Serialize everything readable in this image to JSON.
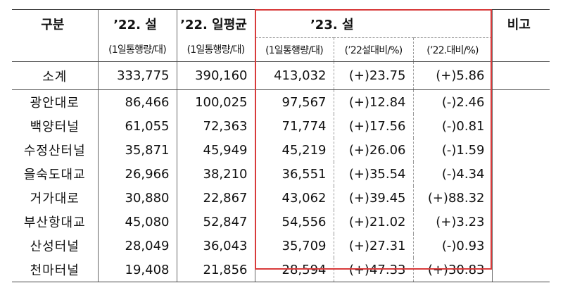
{
  "headers": {
    "category": "구분",
    "y22": "’22. 설",
    "y22avg": "’22. 일평균",
    "y23": "’23. 설",
    "remark": "비고",
    "unit1": "(1일통행량/대)",
    "unit2": "(1일통행량/대)",
    "unit3": "(1일통행량/대)",
    "cmp1": "(’22설대비/%)",
    "cmp2": "(’22.대비/%)"
  },
  "subtotal": {
    "name": "소계",
    "v22": "333,775",
    "avg22": "390,160",
    "v23": "413,032",
    "cmp1": "(+)23.75",
    "cmp2": "(+)5.86"
  },
  "rows": [
    {
      "name": "광안대로",
      "v22": "86,466",
      "avg22": "100,025",
      "v23": "97,567",
      "cmp1": "(+)12.84",
      "cmp2": "(-)2.46"
    },
    {
      "name": "백양터널",
      "v22": "61,055",
      "avg22": "72,363",
      "v23": "71,774",
      "cmp1": "(+)17.56",
      "cmp2": "(-)0.81"
    },
    {
      "name": "수정산터널",
      "v22": "35,871",
      "avg22": "45,949",
      "v23": "45,219",
      "cmp1": "(+)26.06",
      "cmp2": "(-)1.59"
    },
    {
      "name": "을숙도대교",
      "v22": "26,966",
      "avg22": "38,210",
      "v23": "36,551",
      "cmp1": "(+)35.54",
      "cmp2": "(-)4.34"
    },
    {
      "name": "거가대로",
      "v22": "30,880",
      "avg22": "22,867",
      "v23": "43,062",
      "cmp1": "(+)39.45",
      "cmp2": "(+)88.32"
    },
    {
      "name": "부산항대교",
      "v22": "45,080",
      "avg22": "52,847",
      "v23": "54,556",
      "cmp1": "(+)21.02",
      "cmp2": "(+)3.23"
    },
    {
      "name": "산성터널",
      "v22": "28,049",
      "avg22": "36,043",
      "v23": "35,709",
      "cmp1": "(+)27.31",
      "cmp2": "(-)0.93"
    },
    {
      "name": "천마터널",
      "v22": "19,408",
      "avg22": "21,856",
      "v23": "28,594",
      "cmp1": "(+)47.33",
      "cmp2": "(+)30.83"
    }
  ],
  "highlight_color": "#d83b3b"
}
